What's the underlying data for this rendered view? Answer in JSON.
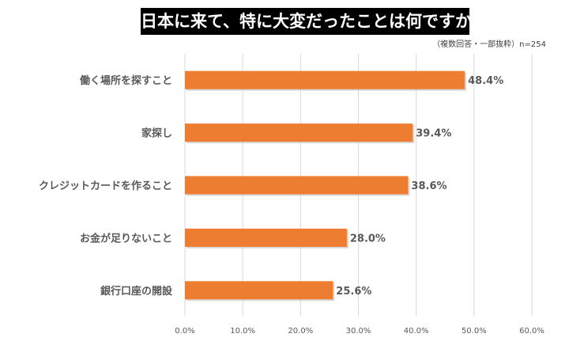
{
  "header": {
    "title": "日本に来て、特に大変だったことは何ですか",
    "note": "（複数回答・一部抜粋）n=254"
  },
  "chart_data": {
    "type": "bar",
    "orientation": "horizontal",
    "title": "日本に来て、特に大変だったことは何ですか",
    "subtitle": "（複数回答・一部抜粋）n=254",
    "categories": [
      "働く場所を探すこと",
      "家探し",
      "クレジットカードを作ること",
      "お金が足りないこと",
      "銀行口座の開設"
    ],
    "values": [
      48.4,
      39.4,
      38.6,
      28.0,
      25.6
    ],
    "data_labels": [
      "48.4%",
      "39.4%",
      "38.6%",
      "28.0%",
      "25.6%"
    ],
    "xlabel": "",
    "ylabel": "",
    "xlim": [
      0,
      60
    ],
    "x_ticks": [
      "0.0%",
      "10.0%",
      "20.0%",
      "30.0%",
      "40.0%",
      "50.0%",
      "60.0%"
    ],
    "grid": true,
    "legend": "none",
    "colors": {
      "bar": "#ED7D31",
      "bar_shadow": "#BFBFBF",
      "grid": "#D9D9D9",
      "label": "#595959",
      "title_bg": "#000000",
      "title_fg": "#FFFFFF"
    }
  }
}
